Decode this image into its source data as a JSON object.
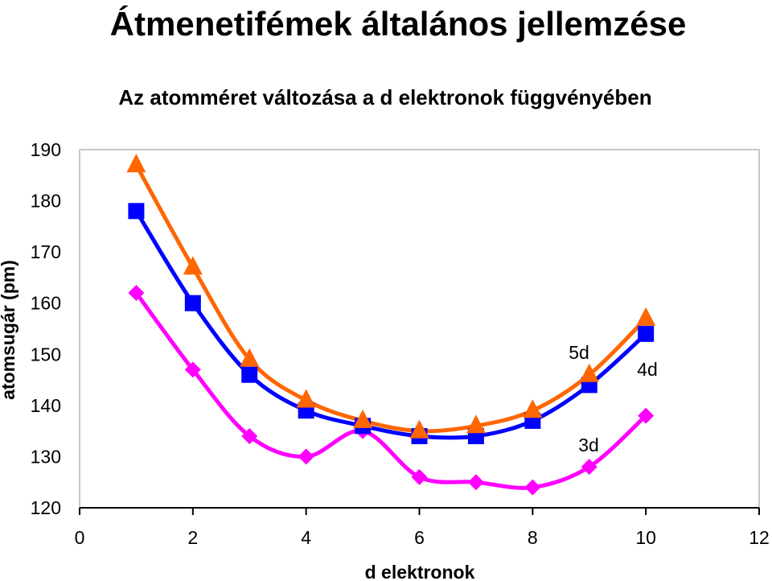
{
  "page": {
    "title": "Átmenetifémek általános jellemzése"
  },
  "chart_data": {
    "type": "line",
    "title": "Az atomméret változása a d elektronok függvényében",
    "xlabel": "d elektronok",
    "ylabel": "atomsugár (pm)",
    "xlim": [
      0,
      12
    ],
    "ylim": [
      120,
      190
    ],
    "xticks": [
      0,
      2,
      4,
      6,
      8,
      10,
      12
    ],
    "yticks": [
      120,
      130,
      140,
      150,
      160,
      170,
      180,
      190
    ],
    "grid": false,
    "x": [
      1,
      2,
      3,
      4,
      5,
      6,
      7,
      8,
      9,
      10
    ],
    "series": [
      {
        "name": "5d",
        "color": "#ff6600",
        "marker": "triangle",
        "values": [
          187,
          167,
          149,
          141,
          137,
          135,
          136,
          139,
          146,
          157
        ]
      },
      {
        "name": "4d",
        "color": "#0000ff",
        "marker": "square",
        "values": [
          178,
          160,
          146,
          139,
          136,
          134,
          134,
          137,
          144,
          154
        ]
      },
      {
        "name": "3d",
        "color": "#ff00ff",
        "marker": "diamond",
        "values": [
          162,
          147,
          134,
          130,
          135,
          126,
          125,
          124,
          128,
          138
        ]
      }
    ]
  }
}
